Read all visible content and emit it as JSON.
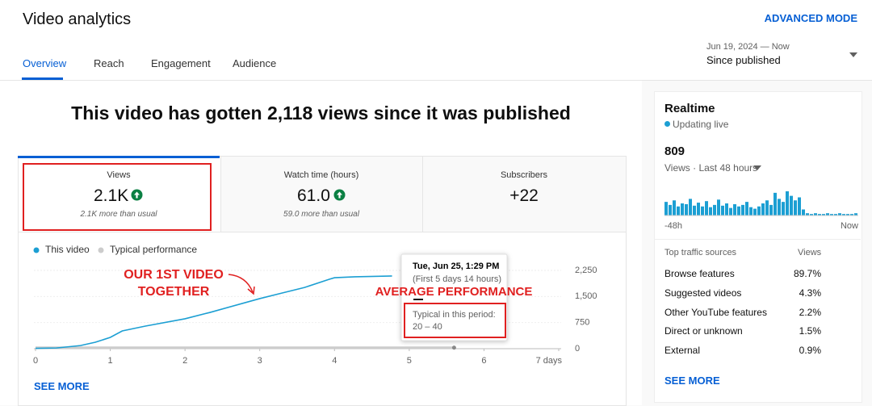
{
  "header": {
    "title": "Video analytics",
    "advanced_mode": "ADVANCED MODE",
    "tabs": [
      "Overview",
      "Reach",
      "Engagement",
      "Audience"
    ],
    "date_range": "Jun 19, 2024 — Now",
    "period": "Since published"
  },
  "headline": "This video has gotten 2,118 views since it was published",
  "metrics": [
    {
      "label": "Views",
      "value": "2.1K",
      "note": "2.1K more than usual"
    },
    {
      "label": "Watch time (hours)",
      "value": "61.0",
      "note": "59.0 more than usual"
    },
    {
      "label": "Subscribers",
      "value": "+22"
    }
  ],
  "see_more": "SEE MORE",
  "chart_data": [
    {
      "type": "line",
      "x": [
        0,
        0.28,
        0.6,
        0.8,
        1.0,
        1.16,
        1.47,
        2.0,
        2.33,
        3.0,
        3.3,
        3.6,
        3.93,
        4.0,
        4.27,
        4.77,
        5.6
      ],
      "series": [
        {
          "name": "This video",
          "color": "#1c9fd3",
          "values": [
            10,
            20,
            90,
            185,
            325,
            510,
            650,
            860,
            1040,
            1440,
            1600,
            1760,
            1995,
            2040,
            2065,
            2090,
            null
          ]
        },
        {
          "name": "Typical performance",
          "color": "#cccccc",
          "values": [
            30,
            30,
            30,
            30,
            30,
            30,
            30,
            30,
            30,
            30,
            30,
            30,
            30,
            30,
            30,
            30,
            30
          ]
        }
      ],
      "xlim": [
        0,
        7
      ],
      "xticks": [
        0,
        1,
        2,
        3,
        4,
        5,
        6,
        {
          "value": 7,
          "label": "7 days"
        }
      ],
      "ylim": [
        0,
        2250
      ],
      "yticks": [
        0,
        750,
        {
          "value": 1500,
          "label": "1,500"
        },
        {
          "value": 2250,
          "label": "2,250"
        }
      ],
      "grid": true,
      "tooltip": {
        "date": "Tue, Jun 25, 1:29 PM",
        "detail": "(First 5 days 14 hours)",
        "label": "Typical in this period:",
        "range": "20 – 40"
      },
      "annotations": [
        "OUR 1ST VIDEO",
        "TOGETHER",
        "AVERAGE PERFORMANCE"
      ]
    },
    {
      "type": "bar",
      "color": "#1c9fd3",
      "categories": [
        "-48h",
        null,
        null,
        null,
        null,
        null,
        null,
        null,
        null,
        null,
        null,
        null,
        null,
        null,
        null,
        null,
        null,
        null,
        null,
        null,
        null,
        null,
        null,
        null,
        null,
        null,
        null,
        null,
        null,
        null,
        null,
        null,
        null,
        null,
        null,
        null,
        null,
        null,
        null,
        null,
        null,
        null,
        null,
        null,
        null,
        null,
        null,
        "Now"
      ],
      "values": [
        18,
        14,
        20,
        12,
        16,
        15,
        22,
        13,
        17,
        12,
        19,
        11,
        14,
        21,
        13,
        16,
        10,
        15,
        12,
        14,
        18,
        11,
        9,
        12,
        16,
        20,
        14,
        30,
        22,
        18,
        32,
        26,
        20,
        24,
        8,
        3,
        2,
        3,
        2,
        2,
        3,
        2,
        2,
        3,
        2,
        2,
        2,
        3
      ]
    }
  ],
  "realtime": {
    "title": "Realtime",
    "status": "Updating live",
    "count": "809",
    "subtitle": "Views · Last 48 hours",
    "traffic": {
      "header": [
        "Top traffic sources",
        "Views"
      ],
      "rows": [
        [
          "Browse features",
          "89.7%"
        ],
        [
          "Suggested videos",
          "4.3%"
        ],
        [
          "Other YouTube features",
          "2.2%"
        ],
        [
          "Direct or unknown",
          "1.5%"
        ],
        [
          "External",
          "0.9%"
        ]
      ]
    },
    "see_more": "SEE MORE"
  }
}
